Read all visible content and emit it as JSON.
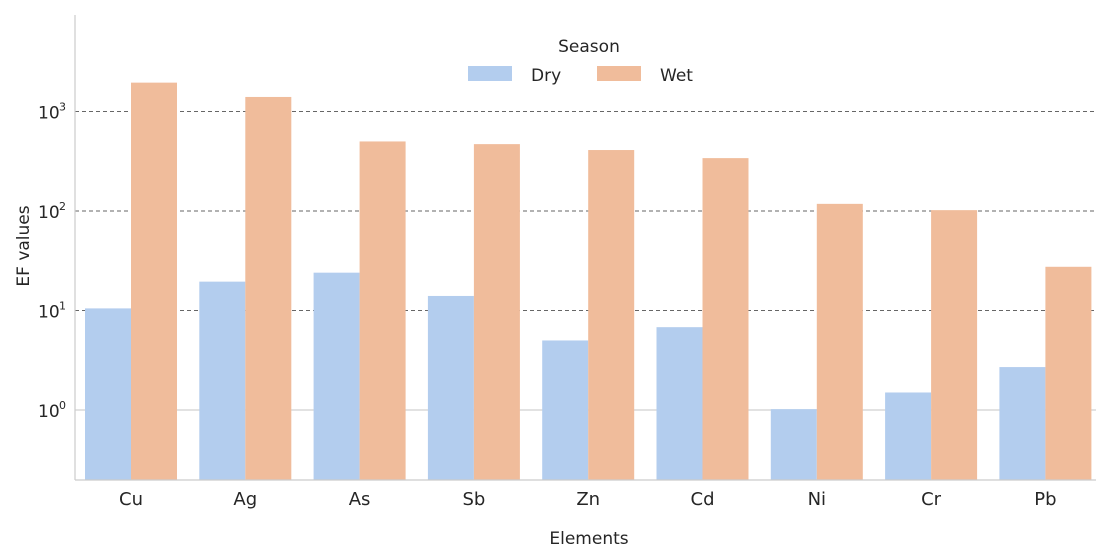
{
  "chart_data": {
    "type": "bar",
    "title": "",
    "xlabel": "Elements",
    "ylabel": "EF values",
    "yscale": "log",
    "ylim": [
      0.2,
      12000
    ],
    "yticks": [
      1,
      10,
      100,
      1000
    ],
    "ytick_labels": [
      {
        "base": "10",
        "exp": "0"
      },
      {
        "base": "10",
        "exp": "1"
      },
      {
        "base": "10",
        "exp": "2"
      },
      {
        "base": "10",
        "exp": "3"
      }
    ],
    "grid": "horizontal dashed",
    "legend": {
      "title": "Season",
      "placement": "top-center"
    },
    "categories": [
      "Cu",
      "Ag",
      "As",
      "Sb",
      "Zn",
      "Cd",
      "Ni",
      "Cr",
      "Pb"
    ],
    "series": [
      {
        "name": "Dry",
        "color": "#b3cdee",
        "values": [
          10.5,
          19.5,
          24,
          14,
          5,
          6.8,
          1.02,
          1.5,
          2.7
        ]
      },
      {
        "name": "Wet",
        "color": "#f0bc9b",
        "values": [
          1950,
          1400,
          500,
          470,
          410,
          340,
          118,
          102,
          27.5
        ]
      }
    ]
  }
}
